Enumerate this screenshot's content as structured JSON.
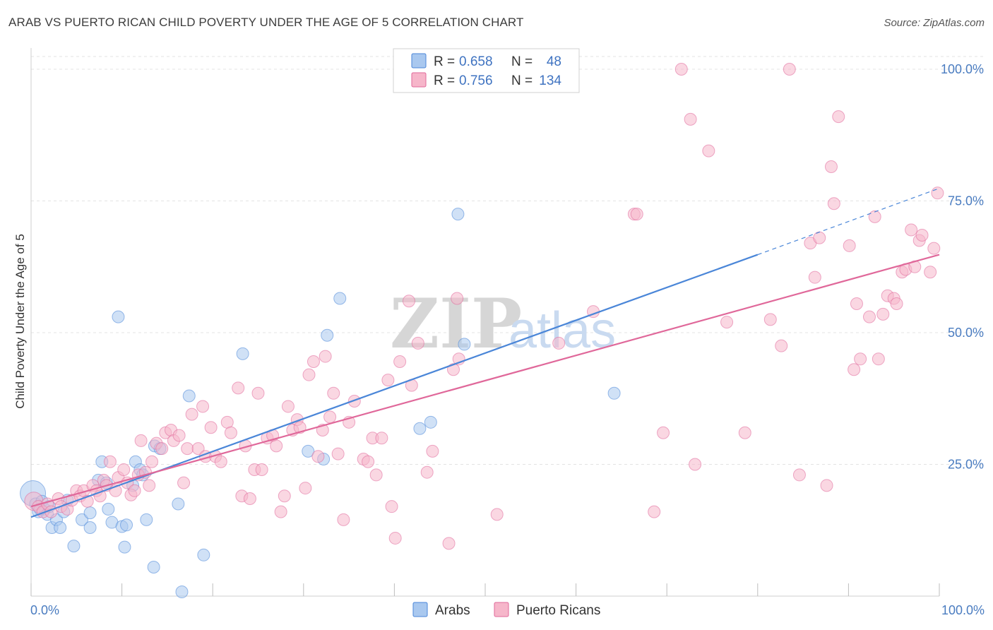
{
  "header": {
    "title": "ARAB VS PUERTO RICAN CHILD POVERTY UNDER THE AGE OF 5 CORRELATION CHART",
    "source": "Source: ZipAtlas.com"
  },
  "watermark": {
    "zip": "ZIP",
    "atlas": "atlas"
  },
  "legend": {
    "rows": [
      {
        "r_label": "R =",
        "r_value": "0.658",
        "n_label": "N =",
        "n_value": "48",
        "color": "#a9c8ef"
      },
      {
        "r_label": "R =",
        "r_value": "0.756",
        "n_label": "N =",
        "n_value": "134",
        "color": "#f6b6ca"
      }
    ]
  },
  "bottom_legend": [
    {
      "label": "Arabs",
      "color": "#a9c8ef"
    },
    {
      "label": "Puerto Ricans",
      "color": "#f6b6ca"
    }
  ],
  "chart_data": {
    "type": "scatter",
    "title": "ARAB VS PUERTO RICAN CHILD POVERTY UNDER THE AGE OF 5 CORRELATION CHART",
    "xlabel": "",
    "ylabel": "Child Poverty Under the Age of 5",
    "xlim": [
      0,
      100
    ],
    "ylim": [
      0,
      100
    ],
    "x_tick_labels": [
      "0.0%",
      "100.0%"
    ],
    "y_ticks": [
      {
        "value": 25,
        "label": "25.0%"
      },
      {
        "value": 50,
        "label": "50.0%"
      },
      {
        "value": 75,
        "label": "75.0%"
      },
      {
        "value": 100,
        "label": "100.0%"
      }
    ],
    "grid": true,
    "legend_position": "top-center",
    "series": [
      {
        "name": "Arabs",
        "color": "#4a86d8",
        "fill": "#a9c8ef",
        "r": 0.658,
        "n": 48,
        "trend": {
          "x0": 0,
          "y0": 15.0,
          "x1": 80,
          "y1": 64.8,
          "dash_x1": 100,
          "dash_y1": 77.4
        },
        "points": [
          [
            0.2,
            19.5,
            3
          ],
          [
            0.5,
            17.5,
            1
          ],
          [
            0.8,
            16.0,
            1
          ],
          [
            1.2,
            18.0,
            1
          ],
          [
            1.5,
            16.5,
            1
          ],
          [
            1.8,
            15.5,
            1
          ],
          [
            2.3,
            13.0,
            1
          ],
          [
            2.8,
            14.5,
            1
          ],
          [
            3.2,
            13.0,
            1
          ],
          [
            3.6,
            16.0,
            1
          ],
          [
            4.0,
            18.2,
            1
          ],
          [
            4.7,
            9.5,
            1
          ],
          [
            5.6,
            14.5,
            1
          ],
          [
            6.5,
            13.0,
            1
          ],
          [
            6.5,
            15.8,
            1
          ],
          [
            7.4,
            22.0,
            1
          ],
          [
            7.8,
            25.5,
            1
          ],
          [
            8.3,
            21.5,
            1
          ],
          [
            8.5,
            16.5,
            1
          ],
          [
            8.9,
            14.0,
            1
          ],
          [
            9.6,
            53.0,
            1
          ],
          [
            10.0,
            13.2,
            1
          ],
          [
            10.3,
            9.3,
            1
          ],
          [
            10.5,
            13.5,
            1
          ],
          [
            11.2,
            21.0,
            1
          ],
          [
            11.5,
            25.5,
            1
          ],
          [
            12.0,
            24.0,
            1
          ],
          [
            12.3,
            23.0,
            1
          ],
          [
            12.7,
            14.5,
            1
          ],
          [
            13.5,
            5.5,
            1
          ],
          [
            13.6,
            28.5,
            1
          ],
          [
            14.2,
            28.0,
            1
          ],
          [
            16.2,
            17.5,
            1
          ],
          [
            16.6,
            0.8,
            1
          ],
          [
            17.4,
            38.0,
            1
          ],
          [
            19.0,
            7.8,
            1
          ],
          [
            23.3,
            46.0,
            1
          ],
          [
            30.5,
            27.5,
            1
          ],
          [
            32.2,
            26.0,
            1
          ],
          [
            32.6,
            49.5,
            1
          ],
          [
            34.0,
            56.5,
            1
          ],
          [
            42.8,
            31.8,
            1
          ],
          [
            44.0,
            33.0,
            1
          ],
          [
            47.0,
            72.5,
            1
          ],
          [
            47.7,
            47.8,
            1
          ],
          [
            64.2,
            38.5,
            1
          ],
          [
            1.0,
            16.5,
            1
          ],
          [
            2.0,
            17.0,
            1
          ]
        ]
      },
      {
        "name": "Puerto Ricans",
        "color": "#e0689a",
        "fill": "#f6b6ca",
        "r": 0.756,
        "n": 134,
        "trend": {
          "x0": 0,
          "y0": 17.0,
          "x1": 100,
          "y1": 64.8
        },
        "points": [
          [
            0.3,
            18.0,
            2
          ],
          [
            0.8,
            17.0,
            1
          ],
          [
            1.3,
            16.0,
            1
          ],
          [
            1.8,
            17.5,
            1
          ],
          [
            2.2,
            16.0,
            1
          ],
          [
            3.0,
            18.5,
            1
          ],
          [
            3.3,
            17.0,
            1
          ],
          [
            4.0,
            16.5,
            1
          ],
          [
            4.5,
            18.2,
            1
          ],
          [
            5.0,
            20.0,
            1
          ],
          [
            5.4,
            19.0,
            1
          ],
          [
            5.8,
            20.0,
            1
          ],
          [
            6.2,
            18.0,
            1
          ],
          [
            6.8,
            21.0,
            1
          ],
          [
            7.2,
            20.0,
            1
          ],
          [
            7.6,
            19.0,
            1
          ],
          [
            8.0,
            22.0,
            1
          ],
          [
            8.3,
            21.0,
            1
          ],
          [
            8.7,
            25.5,
            1
          ],
          [
            9.3,
            20.0,
            1
          ],
          [
            9.6,
            22.5,
            1
          ],
          [
            10.2,
            24.0,
            1
          ],
          [
            10.6,
            21.5,
            1
          ],
          [
            11.0,
            19.2,
            1
          ],
          [
            11.4,
            20.0,
            1
          ],
          [
            11.8,
            23.0,
            1
          ],
          [
            12.1,
            29.5,
            1
          ],
          [
            12.6,
            23.5,
            1
          ],
          [
            13.0,
            21.0,
            1
          ],
          [
            13.3,
            25.5,
            1
          ],
          [
            13.8,
            29.0,
            1
          ],
          [
            14.4,
            28.0,
            1
          ],
          [
            14.8,
            31.0,
            1
          ],
          [
            15.4,
            31.5,
            1
          ],
          [
            15.7,
            29.5,
            1
          ],
          [
            16.3,
            30.5,
            1
          ],
          [
            16.8,
            21.5,
            1
          ],
          [
            17.2,
            28.0,
            1
          ],
          [
            17.7,
            34.5,
            1
          ],
          [
            18.4,
            28.0,
            1
          ],
          [
            18.9,
            36.0,
            1
          ],
          [
            19.2,
            26.5,
            1
          ],
          [
            19.8,
            32.0,
            1
          ],
          [
            20.3,
            26.5,
            1
          ],
          [
            20.9,
            25.5,
            1
          ],
          [
            21.6,
            33.0,
            1
          ],
          [
            22.0,
            31.0,
            1
          ],
          [
            22.8,
            39.5,
            1
          ],
          [
            23.2,
            19.0,
            1
          ],
          [
            23.6,
            28.5,
            1
          ],
          [
            24.1,
            18.5,
            1
          ],
          [
            24.6,
            24.0,
            1
          ],
          [
            25.0,
            38.5,
            1
          ],
          [
            25.4,
            24.0,
            1
          ],
          [
            26.0,
            30.0,
            1
          ],
          [
            26.6,
            30.5,
            1
          ],
          [
            27.0,
            28.5,
            1
          ],
          [
            27.5,
            16.0,
            1
          ],
          [
            27.9,
            19.0,
            1
          ],
          [
            28.3,
            36.0,
            1
          ],
          [
            28.8,
            31.5,
            1
          ],
          [
            29.3,
            33.5,
            1
          ],
          [
            29.6,
            32.0,
            1
          ],
          [
            30.2,
            20.5,
            1
          ],
          [
            30.6,
            42.0,
            1
          ],
          [
            31.1,
            44.5,
            1
          ],
          [
            31.6,
            26.5,
            1
          ],
          [
            32.1,
            31.5,
            1
          ],
          [
            32.4,
            45.5,
            1
          ],
          [
            32.9,
            34.0,
            1
          ],
          [
            33.3,
            38.5,
            1
          ],
          [
            33.8,
            27.0,
            1
          ],
          [
            34.4,
            14.5,
            1
          ],
          [
            35.0,
            33.0,
            1
          ],
          [
            35.6,
            37.0,
            1
          ],
          [
            36.6,
            26.0,
            1
          ],
          [
            37.1,
            25.5,
            1
          ],
          [
            37.6,
            30.0,
            1
          ],
          [
            38.0,
            23.0,
            1
          ],
          [
            38.6,
            30.0,
            1
          ],
          [
            39.3,
            41.0,
            1
          ],
          [
            39.7,
            17.0,
            1
          ],
          [
            40.1,
            11.0,
            1
          ],
          [
            40.6,
            44.5,
            1
          ],
          [
            41.6,
            56.0,
            1
          ],
          [
            41.9,
            40.0,
            1
          ],
          [
            42.6,
            48.0,
            1
          ],
          [
            43.6,
            23.5,
            1
          ],
          [
            44.2,
            27.5,
            1
          ],
          [
            46.0,
            10.0,
            1
          ],
          [
            46.5,
            43.0,
            1
          ],
          [
            46.9,
            56.5,
            1
          ],
          [
            47.1,
            45.0,
            1
          ],
          [
            51.3,
            15.5,
            1
          ],
          [
            58.1,
            48.0,
            1
          ],
          [
            61.9,
            54.0,
            1
          ],
          [
            66.4,
            72.5,
            1
          ],
          [
            66.7,
            72.5,
            1
          ],
          [
            68.6,
            16.0,
            1
          ],
          [
            69.6,
            31.0,
            1
          ],
          [
            71.6,
            100.0,
            1
          ],
          [
            72.6,
            90.5,
            1
          ],
          [
            73.1,
            25.0,
            1
          ],
          [
            74.6,
            84.5,
            1
          ],
          [
            76.6,
            52.0,
            1
          ],
          [
            78.6,
            31.0,
            1
          ],
          [
            81.4,
            52.5,
            1
          ],
          [
            82.6,
            47.5,
            1
          ],
          [
            83.5,
            100.0,
            1
          ],
          [
            84.6,
            23.0,
            1
          ],
          [
            85.8,
            67.0,
            1
          ],
          [
            86.3,
            60.5,
            1
          ],
          [
            86.8,
            68.0,
            1
          ],
          [
            87.6,
            21.0,
            1
          ],
          [
            88.1,
            81.5,
            1
          ],
          [
            88.4,
            74.5,
            1
          ],
          [
            88.9,
            91.0,
            1
          ],
          [
            90.1,
            66.5,
            1
          ],
          [
            90.6,
            43.0,
            1
          ],
          [
            90.9,
            55.5,
            1
          ],
          [
            91.3,
            45.0,
            1
          ],
          [
            92.3,
            53.0,
            1
          ],
          [
            92.9,
            72.0,
            1
          ],
          [
            93.3,
            45.0,
            1
          ],
          [
            93.8,
            53.5,
            1
          ],
          [
            94.3,
            57.0,
            1
          ],
          [
            95.0,
            56.5,
            1
          ],
          [
            95.3,
            55.5,
            1
          ],
          [
            95.9,
            61.5,
            1
          ],
          [
            96.3,
            62.0,
            1
          ],
          [
            96.9,
            69.5,
            1
          ],
          [
            97.3,
            62.5,
            1
          ],
          [
            97.8,
            67.5,
            1
          ],
          [
            98.1,
            68.5,
            1
          ],
          [
            99.0,
            61.5,
            1
          ],
          [
            99.4,
            66.0,
            1
          ],
          [
            99.8,
            76.5,
            1
          ]
        ]
      }
    ]
  }
}
